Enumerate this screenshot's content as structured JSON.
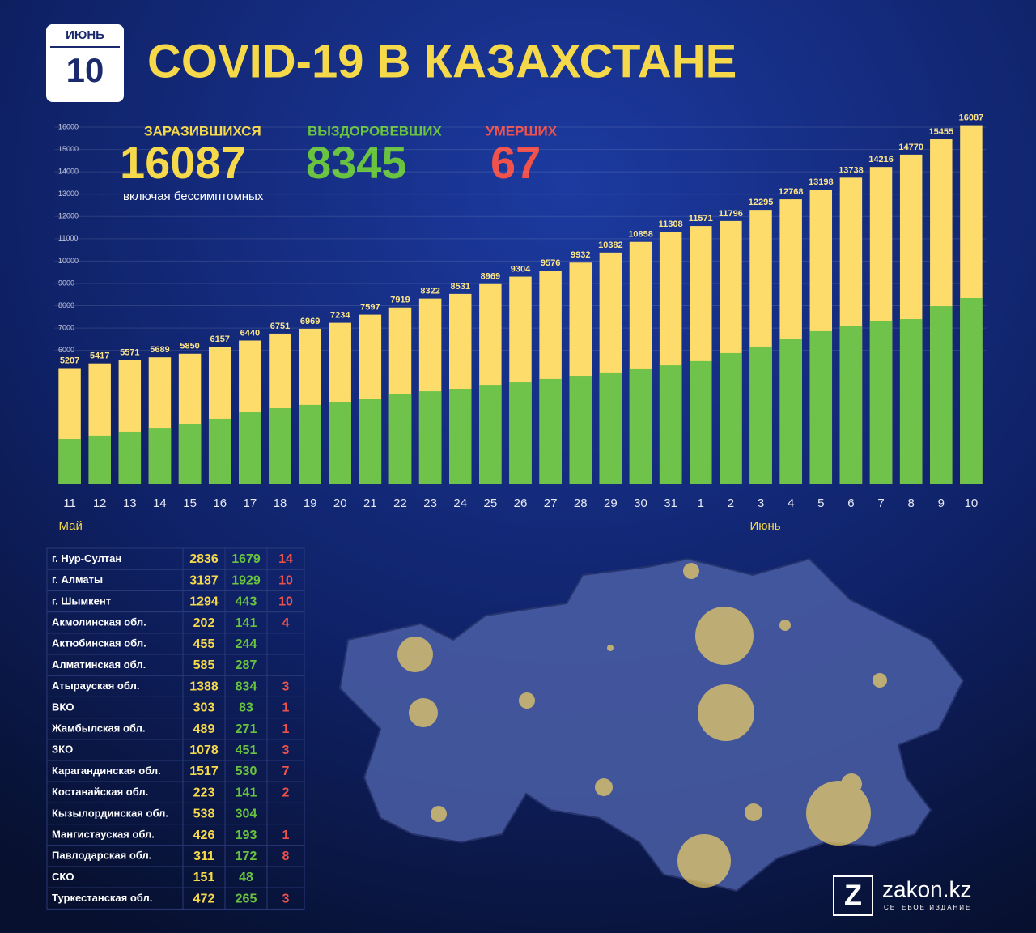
{
  "header": {
    "badge_month": "ИЮНЬ",
    "badge_day": "10",
    "title": "COVID-19 В КАЗАХСТАНЕ"
  },
  "stats": {
    "infected": 16087,
    "infected_note": "включая бессимптомных",
    "recovered": 8345,
    "deaths_label": "УМЕРШИХ",
    "deaths": 67
  },
  "chart_data": {
    "type": "bar",
    "mode": "overlay",
    "categories": [
      "11",
      "12",
      "13",
      "14",
      "15",
      "16",
      "17",
      "18",
      "19",
      "20",
      "21",
      "22",
      "23",
      "24",
      "25",
      "26",
      "27",
      "28",
      "29",
      "30",
      "31",
      "1",
      "2",
      "3",
      "4",
      "5",
      "6",
      "7",
      "8",
      "9",
      "10"
    ],
    "month_labels": [
      "Май",
      "Июнь"
    ],
    "series": [
      {
        "name": "ЗАРАЗИВШИХСЯ",
        "color": "#fddc6b",
        "values": [
          5207,
          5417,
          5571,
          5689,
          5850,
          6157,
          6440,
          6751,
          6969,
          7234,
          7597,
          7919,
          8322,
          8531,
          8969,
          9304,
          9576,
          9932,
          10382,
          10858,
          11308,
          11571,
          11796,
          12295,
          12768,
          13198,
          13738,
          14216,
          14770,
          15455,
          16087
        ]
      },
      {
        "name": "ВЫЗДОРОВЕВШИХ",
        "color": "#6fc24a",
        "values": [
          2030,
          2180,
          2360,
          2500,
          2690,
          2940,
          3230,
          3410,
          3560,
          3700,
          3810,
          4030,
          4170,
          4280,
          4460,
          4570,
          4720,
          4860,
          5010,
          5190,
          5330,
          5520,
          5880,
          6170,
          6530,
          6860,
          7110,
          7330,
          7400,
          7980,
          8345
        ]
      }
    ],
    "ylim": [
      0,
      16000
    ],
    "yticks": [
      6000,
      7000,
      8000,
      9000,
      10000,
      11000,
      12000,
      13000,
      14000,
      15000,
      16000
    ],
    "grid": true
  },
  "table": {
    "rows": [
      [
        "г. Нур-Султан",
        2836,
        1679,
        14
      ],
      [
        "г. Алматы",
        3187,
        1929,
        10
      ],
      [
        "г. Шымкент",
        1294,
        443,
        10
      ],
      [
        "Акмолинская обл.",
        202,
        141,
        4
      ],
      [
        "Актюбинская обл.",
        455,
        244,
        null
      ],
      [
        "Алматинская обл.",
        585,
        287,
        null
      ],
      [
        "Атырауская обл.",
        1388,
        834,
        3
      ],
      [
        "ВКО",
        303,
        83,
        1
      ],
      [
        "Жамбылская обл.",
        489,
        271,
        1
      ],
      [
        "ЗКО",
        1078,
        451,
        3
      ],
      [
        "Карагандинская обл.",
        1517,
        530,
        7
      ],
      [
        "Костанайская обл.",
        223,
        141,
        2
      ],
      [
        "Кызылординская обл.",
        538,
        304,
        null
      ],
      [
        "Мангистауская обл.",
        426,
        193,
        1
      ],
      [
        "Павлодарская обл.",
        311,
        172,
        8
      ],
      [
        "СКО",
        151,
        48,
        null
      ],
      [
        "Туркестанская обл.",
        472,
        265,
        3
      ]
    ]
  },
  "logo": {
    "letter": "Z",
    "name": "zakon.kz",
    "tagline": "СЕТЕВОЕ ИЗДАНИЕ"
  }
}
